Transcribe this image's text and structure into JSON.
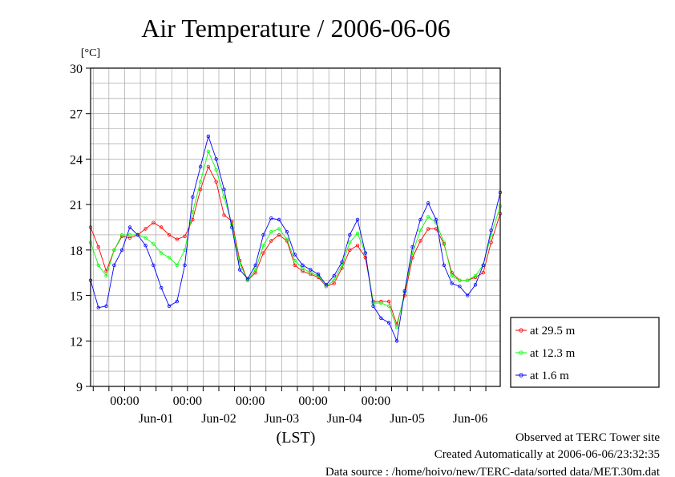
{
  "chart_data": {
    "type": "line",
    "title": "Air Temperature / 2006-06-06",
    "ylabel": "[°C]",
    "xlabel": "(LST)",
    "ylim": [
      9,
      30
    ],
    "yticks": [
      9,
      12,
      15,
      18,
      21,
      24,
      27,
      30
    ],
    "xlim": [
      "2006-05-31T11:00",
      "2006-06-06T23:30"
    ],
    "x_time_ticks": [
      {
        "t": "2006-06-01T00:00",
        "label": "00:00"
      },
      {
        "t": "2006-06-02T00:00",
        "label": "00:00"
      },
      {
        "t": "2006-06-03T00:00",
        "label": "00:00"
      },
      {
        "t": "2006-06-04T00:00",
        "label": "00:00"
      },
      {
        "t": "2006-06-05T00:00",
        "label": "00:00"
      }
    ],
    "x_date_labels": [
      {
        "t": "2006-06-01T12:00",
        "label": "Jun-01"
      },
      {
        "t": "2006-06-02T12:00",
        "label": "Jun-02"
      },
      {
        "t": "2006-06-03T12:00",
        "label": "Jun-03"
      },
      {
        "t": "2006-06-04T12:00",
        "label": "Jun-04"
      },
      {
        "t": "2006-06-05T12:00",
        "label": "Jun-05"
      },
      {
        "t": "2006-06-06T12:00",
        "label": "Jun-06"
      }
    ],
    "grid": true,
    "legend_position": "bottom-right outside",
    "series": [
      {
        "name": "at 29.5 m",
        "color": "#ff0000",
        "x": [
          "2006-05-31T11:00",
          "2006-05-31T14:00",
          "2006-05-31T17:00",
          "2006-05-31T20:00",
          "2006-05-31T23:00",
          "2006-06-01T02:00",
          "2006-06-01T05:00",
          "2006-06-01T08:00",
          "2006-06-01T11:00",
          "2006-06-01T14:00",
          "2006-06-01T17:00",
          "2006-06-01T20:00",
          "2006-06-01T23:00",
          "2006-06-02T02:00",
          "2006-06-02T05:00",
          "2006-06-02T08:00",
          "2006-06-02T11:00",
          "2006-06-02T14:00",
          "2006-06-02T17:00",
          "2006-06-02T20:00",
          "2006-06-02T23:00",
          "2006-06-03T02:00",
          "2006-06-03T05:00",
          "2006-06-03T08:00",
          "2006-06-03T11:00",
          "2006-06-03T14:00",
          "2006-06-03T17:00",
          "2006-06-03T20:00",
          "2006-06-03T23:00",
          "2006-06-04T02:00",
          "2006-06-04T05:00",
          "2006-06-04T08:00",
          "2006-06-04T11:00",
          "2006-06-04T14:00",
          "2006-06-04T17:00",
          "2006-06-04T20:00",
          "2006-06-04T23:00",
          "2006-06-05T02:00",
          "2006-06-05T05:00",
          "2006-06-05T08:00",
          "2006-06-05T11:00",
          "2006-06-05T14:00",
          "2006-06-05T17:00",
          "2006-06-05T20:00",
          "2006-06-05T23:00",
          "2006-06-06T02:00",
          "2006-06-06T05:00",
          "2006-06-06T08:00",
          "2006-06-06T11:00",
          "2006-06-06T14:00",
          "2006-06-06T17:00",
          "2006-06-06T20:00",
          "2006-06-06T23:30"
        ],
        "values": [
          19.5,
          18.2,
          16.6,
          18.0,
          18.9,
          18.8,
          19.0,
          19.4,
          19.8,
          19.5,
          19.0,
          18.7,
          18.9,
          20.0,
          22.0,
          23.5,
          22.5,
          20.3,
          19.9,
          17.3,
          16.0,
          16.5,
          17.8,
          18.6,
          19.0,
          18.6,
          17.0,
          16.6,
          16.4,
          16.2,
          15.6,
          15.8,
          16.8,
          18.0,
          18.3,
          17.5,
          14.6,
          14.6,
          14.6,
          13.1,
          15.0,
          17.5,
          18.6,
          19.4,
          19.4,
          18.4,
          16.5,
          16.0,
          16.0,
          16.2,
          16.5,
          18.5,
          20.4
        ]
      },
      {
        "name": "at 12.3 m",
        "color": "#00ff00",
        "x": [
          "2006-05-31T11:00",
          "2006-05-31T14:00",
          "2006-05-31T17:00",
          "2006-05-31T20:00",
          "2006-05-31T23:00",
          "2006-06-01T02:00",
          "2006-06-01T05:00",
          "2006-06-01T08:00",
          "2006-06-01T11:00",
          "2006-06-01T14:00",
          "2006-06-01T17:00",
          "2006-06-01T20:00",
          "2006-06-01T23:00",
          "2006-06-02T02:00",
          "2006-06-02T05:00",
          "2006-06-02T08:00",
          "2006-06-02T11:00",
          "2006-06-02T14:00",
          "2006-06-02T17:00",
          "2006-06-02T20:00",
          "2006-06-02T23:00",
          "2006-06-03T02:00",
          "2006-06-03T05:00",
          "2006-06-03T08:00",
          "2006-06-03T11:00",
          "2006-06-03T14:00",
          "2006-06-03T17:00",
          "2006-06-03T20:00",
          "2006-06-03T23:00",
          "2006-06-04T02:00",
          "2006-06-04T05:00",
          "2006-06-04T08:00",
          "2006-06-04T11:00",
          "2006-06-04T14:00",
          "2006-06-04T17:00",
          "2006-06-04T20:00",
          "2006-06-04T23:00",
          "2006-06-05T02:00",
          "2006-06-05T05:00",
          "2006-06-05T08:00",
          "2006-06-05T11:00",
          "2006-06-05T14:00",
          "2006-06-05T17:00",
          "2006-06-05T20:00",
          "2006-06-05T23:00",
          "2006-06-06T02:00",
          "2006-06-06T05:00",
          "2006-06-06T08:00",
          "2006-06-06T11:00",
          "2006-06-06T14:00",
          "2006-06-06T17:00",
          "2006-06-06T20:00",
          "2006-06-06T23:30"
        ],
        "values": [
          18.5,
          17.0,
          16.3,
          18.0,
          19.0,
          19.0,
          19.0,
          18.8,
          18.4,
          17.8,
          17.5,
          17.0,
          18.0,
          20.5,
          22.5,
          24.5,
          23.3,
          21.5,
          19.7,
          17.1,
          16.0,
          16.7,
          18.3,
          19.2,
          19.4,
          18.7,
          17.3,
          16.8,
          16.5,
          16.3,
          15.6,
          16.0,
          17.0,
          18.5,
          19.1,
          17.8,
          14.5,
          14.5,
          14.3,
          12.9,
          15.2,
          17.8,
          19.3,
          20.2,
          19.8,
          18.5,
          16.3,
          16.0,
          16.0,
          16.3,
          17.0,
          19.0,
          20.9
        ]
      },
      {
        "name": "at 1.6 m",
        "color": "#0000ff",
        "x": [
          "2006-05-31T11:00",
          "2006-05-31T14:00",
          "2006-05-31T17:00",
          "2006-05-31T20:00",
          "2006-05-31T23:00",
          "2006-06-01T02:00",
          "2006-06-01T05:00",
          "2006-06-01T08:00",
          "2006-06-01T11:00",
          "2006-06-01T14:00",
          "2006-06-01T17:00",
          "2006-06-01T20:00",
          "2006-06-01T23:00",
          "2006-06-02T02:00",
          "2006-06-02T05:00",
          "2006-06-02T08:00",
          "2006-06-02T11:00",
          "2006-06-02T14:00",
          "2006-06-02T17:00",
          "2006-06-02T20:00",
          "2006-06-02T23:00",
          "2006-06-03T02:00",
          "2006-06-03T05:00",
          "2006-06-03T08:00",
          "2006-06-03T11:00",
          "2006-06-03T14:00",
          "2006-06-03T17:00",
          "2006-06-03T20:00",
          "2006-06-03T23:00",
          "2006-06-04T02:00",
          "2006-06-04T05:00",
          "2006-06-04T08:00",
          "2006-06-04T11:00",
          "2006-06-04T14:00",
          "2006-06-04T17:00",
          "2006-06-04T20:00",
          "2006-06-04T23:00",
          "2006-06-05T02:00",
          "2006-06-05T05:00",
          "2006-06-05T08:00",
          "2006-06-05T11:00",
          "2006-06-05T14:00",
          "2006-06-05T17:00",
          "2006-06-05T20:00",
          "2006-06-05T23:00",
          "2006-06-06T02:00",
          "2006-06-06T05:00",
          "2006-06-06T08:00",
          "2006-06-06T11:00",
          "2006-06-06T14:00",
          "2006-06-06T17:00",
          "2006-06-06T20:00",
          "2006-06-06T23:30"
        ],
        "values": [
          16.0,
          14.2,
          14.3,
          17.0,
          18.0,
          19.5,
          19.0,
          18.3,
          17.0,
          15.5,
          14.3,
          14.6,
          17.0,
          21.5,
          23.5,
          25.5,
          24.0,
          22.0,
          19.5,
          16.7,
          16.1,
          17.0,
          19.0,
          20.1,
          20.0,
          19.2,
          17.7,
          17.0,
          16.7,
          16.4,
          15.7,
          16.3,
          17.2,
          19.0,
          20.0,
          17.8,
          14.3,
          13.5,
          13.2,
          12.0,
          15.3,
          18.2,
          20.0,
          21.1,
          20.0,
          17.0,
          15.8,
          15.6,
          15.0,
          15.7,
          17.0,
          19.3,
          21.8
        ]
      }
    ]
  },
  "footer": {
    "line1": "Observed at TERC Tower site",
    "line2": "Created Automatically at 2006-06-06/23:32:35",
    "line3": "Data source : /home/hoivo/new/TERC-data/sorted  data/MET.30m.dat"
  }
}
